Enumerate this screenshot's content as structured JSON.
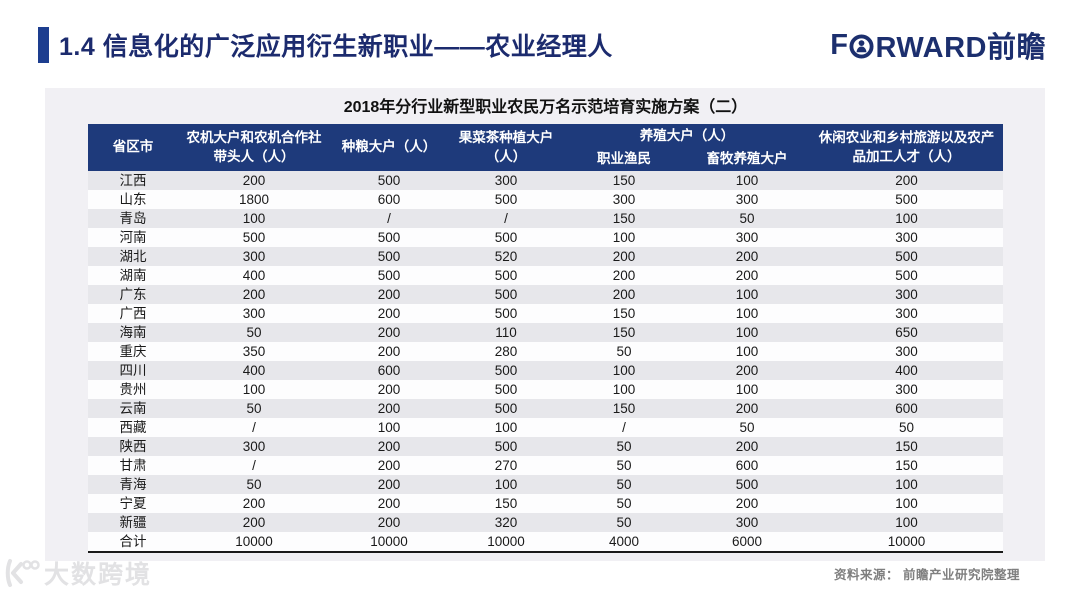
{
  "header": {
    "title": "1.4 信息化的广泛应用衍生新职业——农业经理人",
    "logo_pre": "F",
    "logo_post": "RWARD前瞻",
    "accent_color": "#1d3e8f",
    "navy_color": "#1c2f6e"
  },
  "table": {
    "title": "2018年分行业新型职业农民万名示范培育实施方案（二）",
    "header_bg": "#1e3a7b",
    "stripe_color": "#e7e7eb",
    "columns": [
      {
        "label": "省区市"
      },
      {
        "label": "农机大户和农机合作社带头人（人）"
      },
      {
        "label": "种粮大户（人）"
      },
      {
        "label": "果菜茶种植大户（人）"
      },
      {
        "label": "养殖大户（人）",
        "children": [
          "职业渔民",
          "畜牧养殖大户"
        ]
      },
      {
        "label": "休闲农业和乡村旅游以及农产品加工人才（人）"
      }
    ],
    "total_label": "合计",
    "rows": [
      [
        "江西",
        "200",
        "500",
        "300",
        "150",
        "100",
        "200"
      ],
      [
        "山东",
        "1800",
        "600",
        "500",
        "300",
        "300",
        "500"
      ],
      [
        "青岛",
        "100",
        "/",
        "/",
        "150",
        "50",
        "100"
      ],
      [
        "河南",
        "500",
        "500",
        "500",
        "100",
        "300",
        "300"
      ],
      [
        "湖北",
        "300",
        "500",
        "520",
        "200",
        "200",
        "500"
      ],
      [
        "湖南",
        "400",
        "500",
        "500",
        "200",
        "200",
        "500"
      ],
      [
        "广东",
        "200",
        "200",
        "500",
        "200",
        "100",
        "300"
      ],
      [
        "广西",
        "300",
        "200",
        "500",
        "150",
        "100",
        "300"
      ],
      [
        "海南",
        "50",
        "200",
        "110",
        "150",
        "100",
        "650"
      ],
      [
        "重庆",
        "350",
        "200",
        "280",
        "50",
        "100",
        "300"
      ],
      [
        "四川",
        "400",
        "600",
        "500",
        "100",
        "200",
        "400"
      ],
      [
        "贵州",
        "100",
        "200",
        "500",
        "100",
        "100",
        "300"
      ],
      [
        "云南",
        "50",
        "200",
        "500",
        "150",
        "200",
        "600"
      ],
      [
        "西藏",
        "/",
        "100",
        "100",
        "/",
        "50",
        "50"
      ],
      [
        "陕西",
        "300",
        "200",
        "500",
        "50",
        "200",
        "150"
      ],
      [
        "甘肃",
        "/",
        "200",
        "270",
        "50",
        "600",
        "150"
      ],
      [
        "青海",
        "50",
        "200",
        "100",
        "50",
        "500",
        "100"
      ],
      [
        "宁夏",
        "200",
        "200",
        "150",
        "50",
        "200",
        "100"
      ],
      [
        "新疆",
        "200",
        "200",
        "320",
        "50",
        "300",
        "100"
      ],
      [
        "合计",
        "10000",
        "10000",
        "10000",
        "4000",
        "6000",
        "10000"
      ]
    ]
  },
  "footer": {
    "source": "资料来源：  前瞻产业研究院整理",
    "watermark": "大数跨境"
  }
}
